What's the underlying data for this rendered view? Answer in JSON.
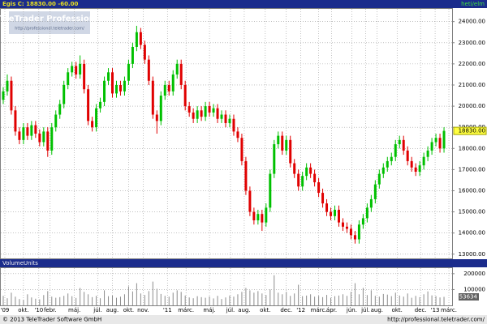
{
  "header": {
    "quote": "Egis C: 18830.00 -60.00",
    "period": "heti/elm"
  },
  "watermark": {
    "title": "TeleTrader Professional",
    "url": "http://professional.teletrader.com/"
  },
  "footer": {
    "copyright": "© 2013 TeleTrader Software GmbH",
    "url": "http://professional.teletrader.com/"
  },
  "chart_data": [
    {
      "type": "candlestick",
      "up_color": "#00c000",
      "down_color": "#e00000",
      "grid": true,
      "last_label": "18830.00",
      "open": [
        20300,
        20700,
        21200,
        19800,
        18800,
        18400,
        19000,
        18600,
        19100,
        18700,
        18300,
        18800,
        17900,
        19000,
        19600,
        20100,
        21000,
        21600,
        21900,
        21500,
        22000,
        20800,
        19300,
        19000,
        19900,
        20200,
        21200,
        21600,
        20600,
        21000,
        20700,
        21200,
        22000,
        22800,
        23500,
        22900,
        22200,
        21200,
        19600,
        19300,
        20500,
        21000,
        20700,
        21500,
        22000,
        21000,
        20000,
        19700,
        19400,
        19800,
        19500,
        20000,
        19700,
        19900,
        19400,
        19600,
        19200,
        19400,
        18800,
        18500,
        17400,
        16000,
        15000,
        14600,
        14900,
        14500,
        15200,
        16800,
        18200,
        18600,
        17900,
        18400,
        17300,
        16800,
        16200,
        16700,
        17100,
        16800,
        16400,
        15900,
        15400,
        15000,
        14800,
        15100,
        14500,
        14300,
        14200,
        13900,
        13700,
        14400,
        14700,
        15200,
        15600,
        16300,
        16800,
        17100,
        17400,
        17600,
        18200,
        18400,
        17900,
        17400,
        17100,
        16900,
        17200,
        17600,
        17900,
        18300,
        18500,
        18000
      ],
      "high": [
        20900,
        21500,
        21400,
        20000,
        19000,
        19200,
        19200,
        19300,
        19300,
        18900,
        19000,
        19000,
        19200,
        19800,
        20300,
        21200,
        21800,
        22100,
        22100,
        22400,
        22200,
        21000,
        19500,
        20100,
        20400,
        21400,
        21800,
        21800,
        21200,
        21200,
        21400,
        22200,
        23000,
        23800,
        23700,
        23100,
        22400,
        21400,
        19800,
        20700,
        21200,
        21200,
        21700,
        22200,
        22200,
        21200,
        20200,
        19900,
        20000,
        20000,
        20200,
        20200,
        20100,
        20100,
        19800,
        19800,
        19600,
        19600,
        19000,
        18700,
        17600,
        16200,
        15200,
        15100,
        15100,
        15400,
        17000,
        18400,
        18800,
        18800,
        18600,
        18600,
        17500,
        17000,
        16900,
        17300,
        17300,
        17000,
        16600,
        16100,
        15600,
        15200,
        15300,
        15300,
        14700,
        14500,
        14400,
        14100,
        14600,
        14900,
        15400,
        15800,
        16500,
        17000,
        17300,
        17600,
        17800,
        18400,
        18600,
        18600,
        18100,
        17600,
        17300,
        17400,
        17800,
        18100,
        18500,
        18700,
        18700,
        19000
      ],
      "low": [
        20100,
        20500,
        19600,
        18600,
        18200,
        18200,
        18400,
        18400,
        18500,
        18100,
        18100,
        17600,
        17700,
        18800,
        19400,
        19900,
        20800,
        21400,
        21300,
        21300,
        20600,
        19100,
        18800,
        18800,
        19700,
        20000,
        21000,
        20400,
        20400,
        20500,
        20500,
        21000,
        21800,
        22600,
        22700,
        22000,
        21000,
        19400,
        18700,
        19100,
        20300,
        20500,
        20500,
        21300,
        20800,
        19800,
        19500,
        19200,
        19200,
        19300,
        19300,
        19500,
        19500,
        19200,
        19200,
        19000,
        19000,
        18600,
        18300,
        17200,
        15800,
        14800,
        14400,
        14400,
        14100,
        14300,
        15000,
        16600,
        18000,
        17700,
        17700,
        17100,
        16600,
        16000,
        16000,
        16500,
        16600,
        16200,
        15700,
        15200,
        14800,
        14600,
        14600,
        14300,
        14100,
        14000,
        13700,
        13500,
        13500,
        14200,
        14500,
        15000,
        15400,
        16100,
        16600,
        16900,
        17200,
        17400,
        18000,
        17700,
        17200,
        16900,
        16700,
        16700,
        17000,
        17400,
        17700,
        18100,
        17800,
        17800
      ],
      "close": [
        20700,
        21200,
        19800,
        18800,
        18400,
        19000,
        18600,
        19100,
        18700,
        18300,
        18800,
        17900,
        19000,
        19600,
        20100,
        21000,
        21600,
        21900,
        21500,
        22000,
        20800,
        19300,
        19000,
        19900,
        20200,
        21200,
        21600,
        20600,
        21000,
        20700,
        21200,
        22000,
        22800,
        23500,
        22900,
        22200,
        21200,
        19600,
        19300,
        20500,
        21000,
        20700,
        21500,
        22000,
        21000,
        20000,
        19700,
        19400,
        19800,
        19500,
        20000,
        19700,
        19900,
        19400,
        19600,
        19200,
        19400,
        18800,
        18500,
        17400,
        16000,
        15000,
        14600,
        14900,
        14500,
        15200,
        16800,
        18200,
        18600,
        17900,
        18400,
        17300,
        16800,
        16200,
        16700,
        17100,
        16800,
        16400,
        15900,
        15400,
        15000,
        14800,
        15100,
        14500,
        14300,
        14200,
        13900,
        13700,
        14400,
        14700,
        15200,
        15600,
        16300,
        16800,
        17100,
        17400,
        17600,
        18200,
        18400,
        17900,
        17400,
        17100,
        16900,
        17200,
        17600,
        17900,
        18300,
        18500,
        18000,
        18830
      ],
      "xlim": [
        -0.6,
        111
      ],
      "xticks": [
        {
          "value": 0.4,
          "label": "'09"
        },
        {
          "value": 5,
          "label": "okt."
        },
        {
          "value": 8.8,
          "label": "'10"
        },
        {
          "value": 11.6,
          "label": "febr."
        },
        {
          "value": 17.6,
          "label": "máj."
        },
        {
          "value": 23.4,
          "label": "júl."
        },
        {
          "value": 27,
          "label": "aug."
        },
        {
          "value": 31,
          "label": "okt."
        },
        {
          "value": 34.6,
          "label": "nov."
        },
        {
          "value": 40.6,
          "label": "'11"
        },
        {
          "value": 45.2,
          "label": "márc."
        },
        {
          "value": 51,
          "label": "máj."
        },
        {
          "value": 56.2,
          "label": "júl."
        },
        {
          "value": 59.6,
          "label": "aug."
        },
        {
          "value": 64.8,
          "label": "okt."
        },
        {
          "value": 70,
          "label": "dec."
        },
        {
          "value": 73.6,
          "label": "'12"
        },
        {
          "value": 78,
          "label": "márc."
        },
        {
          "value": 81.2,
          "label": "ápr."
        },
        {
          "value": 86.2,
          "label": "jún."
        },
        {
          "value": 89.6,
          "label": "júl."
        },
        {
          "value": 92.4,
          "label": "aug."
        },
        {
          "value": 97.4,
          "label": "okt."
        },
        {
          "value": 103.2,
          "label": "dec."
        },
        {
          "value": 106.8,
          "label": "'13"
        },
        {
          "value": 110.2,
          "label": "márc."
        }
      ],
      "ylim": [
        12800,
        24600
      ],
      "yticks": [
        {
          "value": 13000,
          "label": "13000.00"
        },
        {
          "value": 14000,
          "label": "14000.00"
        },
        {
          "value": 15000,
          "label": "15000.00"
        },
        {
          "value": 16000,
          "label": "16000.00"
        },
        {
          "value": 17000,
          "label": "17000.00"
        },
        {
          "value": 18000,
          "label": "18000.00"
        },
        {
          "value": 19000,
          "label": "19000.00"
        },
        {
          "value": 20000,
          "label": "20000.00"
        },
        {
          "value": 21000,
          "label": "21000.00"
        },
        {
          "value": 22000,
          "label": "22000.00"
        },
        {
          "value": 23000,
          "label": "23000.00"
        },
        {
          "value": 24000,
          "label": "24000.00"
        }
      ]
    },
    {
      "type": "bar",
      "title": "VolumeUnits",
      "color": "#8c8c8c",
      "grid": true,
      "values": [
        60000,
        45000,
        80000,
        55000,
        40000,
        35000,
        70000,
        50000,
        42000,
        38000,
        65000,
        90000,
        55000,
        48000,
        52000,
        60000,
        75000,
        58000,
        47000,
        110000,
        85000,
        70000,
        52000,
        60000,
        45000,
        95000,
        58000,
        62000,
        48000,
        55000,
        70000,
        120000,
        88000,
        140000,
        75000,
        66000,
        90000,
        150000,
        105000,
        72000,
        60000,
        55000,
        80000,
        95000,
        85000,
        62000,
        50000,
        45000,
        58000,
        52000,
        48000,
        56000,
        44000,
        60000,
        40000,
        50000,
        62000,
        55000,
        70000,
        85000,
        110000,
        95000,
        80000,
        90000,
        75000,
        65000,
        100000,
        190000,
        80000,
        70000,
        85000,
        60000,
        75000,
        130000,
        58000,
        62000,
        70000,
        55000,
        60000,
        52000,
        66000,
        48000,
        58000,
        62000,
        70000,
        60000,
        85000,
        140000,
        70000,
        110000,
        65000,
        95000,
        60000,
        55000,
        72000,
        68000,
        58000,
        80000,
        62000,
        55000,
        75000,
        48000,
        60000,
        52000,
        70000,
        88000,
        63000,
        58000,
        50000,
        53634
      ],
      "ylim": [
        0,
        235000
      ],
      "yticks": [
        100000,
        200000
      ]
    }
  ]
}
